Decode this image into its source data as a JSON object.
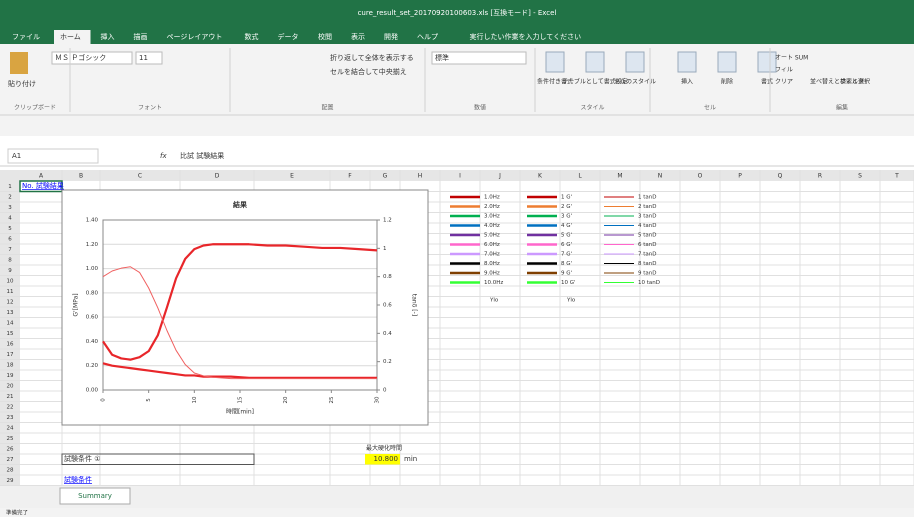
{
  "window": {
    "title": "cure_result_set_20170920100603.xls [互換モード] - Excel",
    "tabs": [
      "ファイル",
      "ホーム",
      "挿入",
      "描画",
      "ページレイアウト",
      "数式",
      "データ",
      "校閲",
      "表示",
      "開発",
      "ヘルプ"
    ],
    "search": "実行したい作業を入力してください"
  },
  "ribbon": {
    "paste": "貼り付け",
    "font_name": "ＭＳ Ｐゴシック",
    "font_size": "11",
    "wrap": "折り返して全体を表示する",
    "merge": "セルを結合して中央揃え",
    "number_format": "標準",
    "buttons": [
      "条件付き書式",
      "テーブルとして書式設定",
      "セルのスタイル",
      "挿入",
      "削除",
      "書式"
    ],
    "edit_buttons": [
      "オート SUM",
      "フィル",
      "クリア",
      "並べ替えとフィルター",
      "検索と選択"
    ],
    "groups": [
      "クリップボード",
      "フォント",
      "配置",
      "数値",
      "スタイル",
      "セル",
      "編集"
    ]
  },
  "formula_bar": {
    "name_box": "A1",
    "fx": "fx",
    "content": "比試 試験結果"
  },
  "sheet": {
    "columns": [
      "A",
      "B",
      "C",
      "D",
      "E",
      "F",
      "G",
      "H",
      "I",
      "J",
      "K",
      "L",
      "M",
      "N",
      "O",
      "P",
      "Q",
      "R",
      "S",
      "T"
    ],
    "rows": [
      1,
      2,
      3,
      4,
      5,
      6,
      7,
      8,
      9,
      10,
      11,
      12,
      13,
      14,
      15,
      16,
      17,
      18,
      19,
      20,
      21,
      22,
      23,
      24,
      25,
      26,
      27,
      28,
      29
    ],
    "a1": "No. 試験結果",
    "max_label": "最大硬化時間",
    "max_value": "10.800",
    "max_unit": "min",
    "condition_box": "試験条件 ①",
    "condition_link": "試験条件",
    "legend": {
      "colors": [
        "#c00000",
        "#ed7d31",
        "#00b050",
        "#0070c0",
        "#7030a0",
        "#ff66cc",
        "#cc99ff",
        "#000000",
        "#7f3f00",
        "#33ff33"
      ],
      "groups": [
        {
          "labels": [
            "1.0Hz",
            "2.0Hz",
            "3.0Hz",
            "4.0Hz",
            "5.0Hz",
            "6.0Hz",
            "7.0Hz",
            "8.0Hz",
            "9.0Hz",
            "10.0Hz"
          ],
          "footer": "Ylo"
        },
        {
          "labels": [
            "1 G'",
            "2 G'",
            "3 G'",
            "4 G'",
            "5 G'",
            "6 G'",
            "7 G'",
            "8 G'",
            "9 G'",
            "10 G'"
          ],
          "footer": "Ylo"
        },
        {
          "labels": [
            "1 tanD",
            "2 tanD",
            "3 tanD",
            "4 tanD",
            "5 tanD",
            "6 tanD",
            "7 tanD",
            "8 tanD",
            "9 tanD",
            "10 tanD"
          ]
        }
      ]
    }
  },
  "sheet_tab": "Summary",
  "status": "準備完了",
  "chart_data": {
    "type": "line",
    "title": "結果",
    "x_label": "時間[min]",
    "y_label": "G'[MPa]",
    "y2_label": "tanδ [-]",
    "x": [
      0,
      1,
      2,
      3,
      4,
      5,
      6,
      7,
      8,
      9,
      10,
      11,
      12,
      14,
      16,
      18,
      20,
      22,
      24,
      26,
      28,
      30
    ],
    "xlim": [
      0,
      30
    ],
    "xticks": [
      0,
      5,
      10,
      15,
      20,
      25,
      30
    ],
    "ylim": [
      0,
      1.4
    ],
    "yticks": [
      {
        "value": 0,
        "label": "0.00"
      },
      {
        "value": 0.2,
        "label": "0.20"
      },
      {
        "value": 0.4,
        "label": "0.40"
      },
      {
        "value": 0.6,
        "label": "0.60"
      },
      {
        "value": 0.8,
        "label": "0.80"
      },
      {
        "value": 1.0,
        "label": "1.00"
      },
      {
        "value": 1.2,
        "label": "1.20"
      },
      {
        "value": 1.4,
        "label": "1.40"
      }
    ],
    "y2lim": [
      0,
      1.2
    ],
    "y2ticks": [
      0,
      0.2,
      0.4,
      0.6,
      0.8,
      1,
      1.2
    ],
    "grid": true,
    "series": [
      {
        "color": "#e8262a",
        "values": [
          0.4,
          0.29,
          0.26,
          0.25,
          0.27,
          0.32,
          0.45,
          0.68,
          0.92,
          1.08,
          1.16,
          1.19,
          1.2,
          1.2,
          1.2,
          1.19,
          1.19,
          1.18,
          1.17,
          1.17,
          1.16,
          1.15
        ]
      },
      {
        "color": "#e8262a",
        "values": [
          0.22,
          0.2,
          0.19,
          0.18,
          0.17,
          0.16,
          0.15,
          0.14,
          0.13,
          0.12,
          0.12,
          0.11,
          0.11,
          0.11,
          0.1,
          0.1,
          0.1,
          0.1,
          0.1,
          0.1,
          0.1,
          0.1
        ]
      },
      {
        "color": "#f06060",
        "axis": "y2",
        "values": [
          0.8,
          0.84,
          0.86,
          0.87,
          0.83,
          0.72,
          0.58,
          0.42,
          0.28,
          0.18,
          0.12,
          0.1,
          0.09,
          0.08,
          0.08,
          0.08,
          0.08,
          0.08,
          0.08,
          0.08,
          0.08,
          0.08
        ]
      }
    ]
  }
}
